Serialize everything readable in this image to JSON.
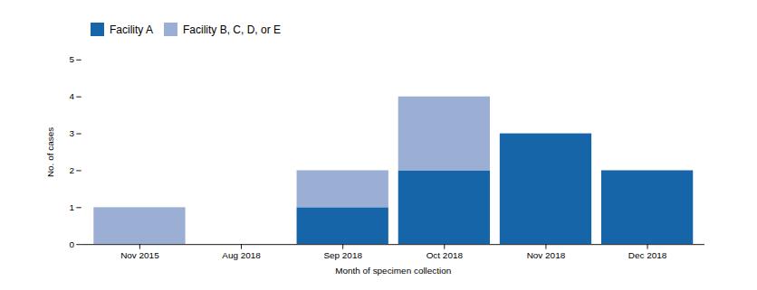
{
  "chart_data": {
    "type": "bar",
    "stacked": true,
    "categories": [
      "Nov 2015",
      "Aug 2018",
      "Sep 2018",
      "Oct 2018",
      "Nov 2018",
      "Dec 2018"
    ],
    "series": [
      {
        "name": "Facility A",
        "color": "#1565a8",
        "values": [
          0,
          0,
          1,
          2,
          3,
          2
        ]
      },
      {
        "name": "Facility B, C, D, or E",
        "color": "#9baed4",
        "values": [
          1,
          0,
          1,
          2,
          0,
          0
        ]
      }
    ],
    "xlabel": "Month of specimen collection",
    "ylabel": "No. of cases",
    "ylim": [
      0,
      5
    ],
    "yticks": [
      0,
      1,
      2,
      3,
      4,
      5
    ],
    "legend": "upper left"
  }
}
